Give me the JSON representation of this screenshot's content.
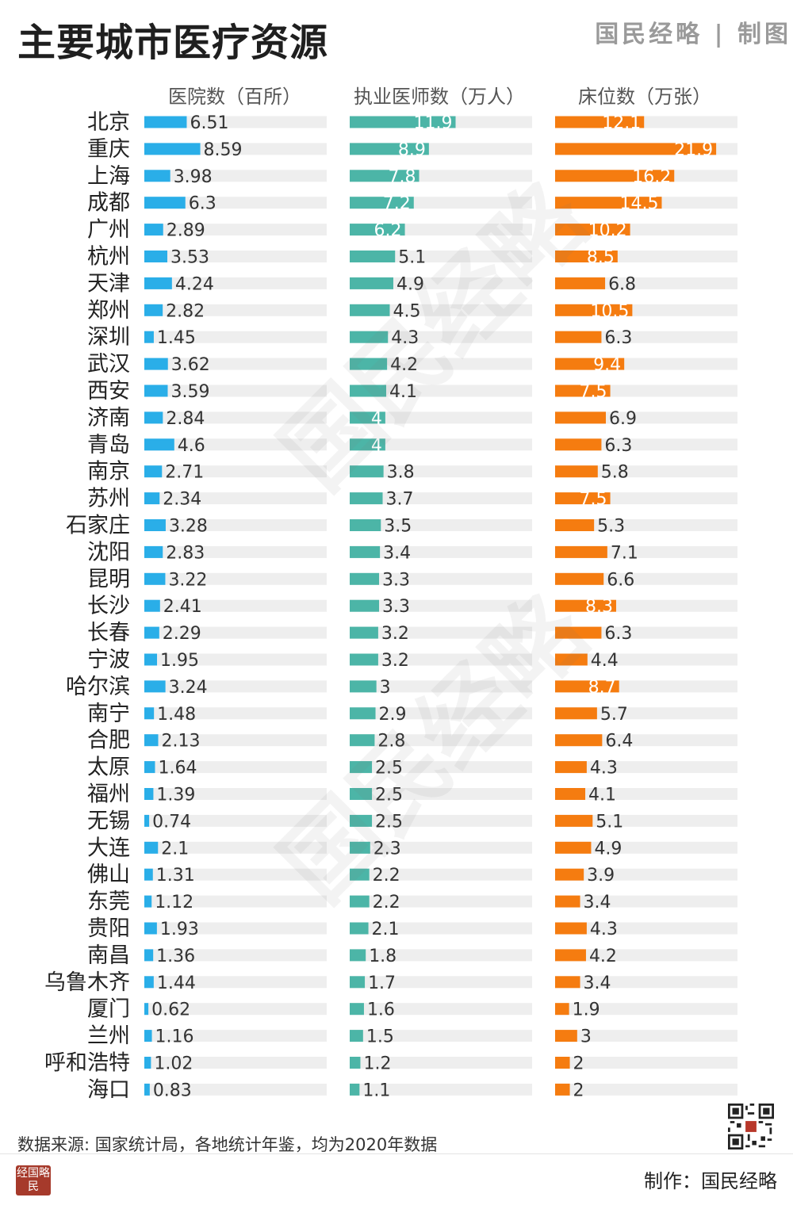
{
  "header": {
    "title": "主要城市医疗资源",
    "brand": "国民经略 | 制图"
  },
  "footer": {
    "source": "数据来源: 国家统计局，各地统计年鉴，均为2020年数据",
    "maker": "制作：国民经略",
    "logo_text": "经国略民"
  },
  "watermark": {
    "large": "国民经略",
    "small": "国民经略"
  },
  "colors": {
    "hospitals": "#2aaee8",
    "doctors": "#4cb5a7",
    "beds": "#f57c10",
    "track": "#eeeeee"
  },
  "chart_data": {
    "type": "bar",
    "categories": [
      "北京",
      "重庆",
      "上海",
      "成都",
      "广州",
      "杭州",
      "天津",
      "郑州",
      "深圳",
      "武汉",
      "西安",
      "济南",
      "青岛",
      "南京",
      "苏州",
      "石家庄",
      "沈阳",
      "昆明",
      "长沙",
      "长春",
      "宁波",
      "哈尔滨",
      "南宁",
      "合肥",
      "太原",
      "福州",
      "无锡",
      "大连",
      "佛山",
      "东莞",
      "贵阳",
      "南昌",
      "乌鲁木齐",
      "厦门",
      "兰州",
      "呼和浩特",
      "海口"
    ],
    "series": [
      {
        "name": "医院数（百所）",
        "color": "#2aaee8",
        "max": 28,
        "values": [
          6.51,
          8.59,
          3.98,
          6.3,
          2.89,
          3.53,
          4.24,
          2.82,
          1.45,
          3.62,
          3.59,
          2.84,
          4.6,
          2.71,
          2.34,
          3.28,
          2.83,
          3.22,
          2.41,
          2.29,
          1.95,
          3.24,
          1.48,
          2.13,
          1.64,
          1.39,
          0.74,
          2.1,
          1.31,
          1.12,
          1.93,
          1.36,
          1.44,
          0.62,
          1.16,
          1.02,
          0.83
        ]
      },
      {
        "name": "执业医师数（万人）",
        "color": "#4cb5a7",
        "max": 20.5,
        "values": [
          11.9,
          8.9,
          7.8,
          7.2,
          6.2,
          5.1,
          4.9,
          4.5,
          4.3,
          4.2,
          4.1,
          4,
          4,
          3.8,
          3.7,
          3.5,
          3.4,
          3.3,
          3.3,
          3.2,
          3.2,
          3,
          2.9,
          2.8,
          2.5,
          2.5,
          2.5,
          2.3,
          2.2,
          2.2,
          2.1,
          1.8,
          1.7,
          1.6,
          1.5,
          1.2,
          1.1
        ]
      },
      {
        "name": "床位数（万张）",
        "color": "#f57c10",
        "max": 24.8,
        "values": [
          12.1,
          21.9,
          16.2,
          14.5,
          10.2,
          8.5,
          6.8,
          10.5,
          6.3,
          9.4,
          7.5,
          6.9,
          6.3,
          5.8,
          7.5,
          5.3,
          7.1,
          6.6,
          8.3,
          6.3,
          4.4,
          8.7,
          5.7,
          6.4,
          4.3,
          4.1,
          5.1,
          4.9,
          3.9,
          3.4,
          4.3,
          4.2,
          3.4,
          1.9,
          3,
          2,
          2
        ]
      }
    ],
    "grid": false,
    "legend": "none"
  }
}
